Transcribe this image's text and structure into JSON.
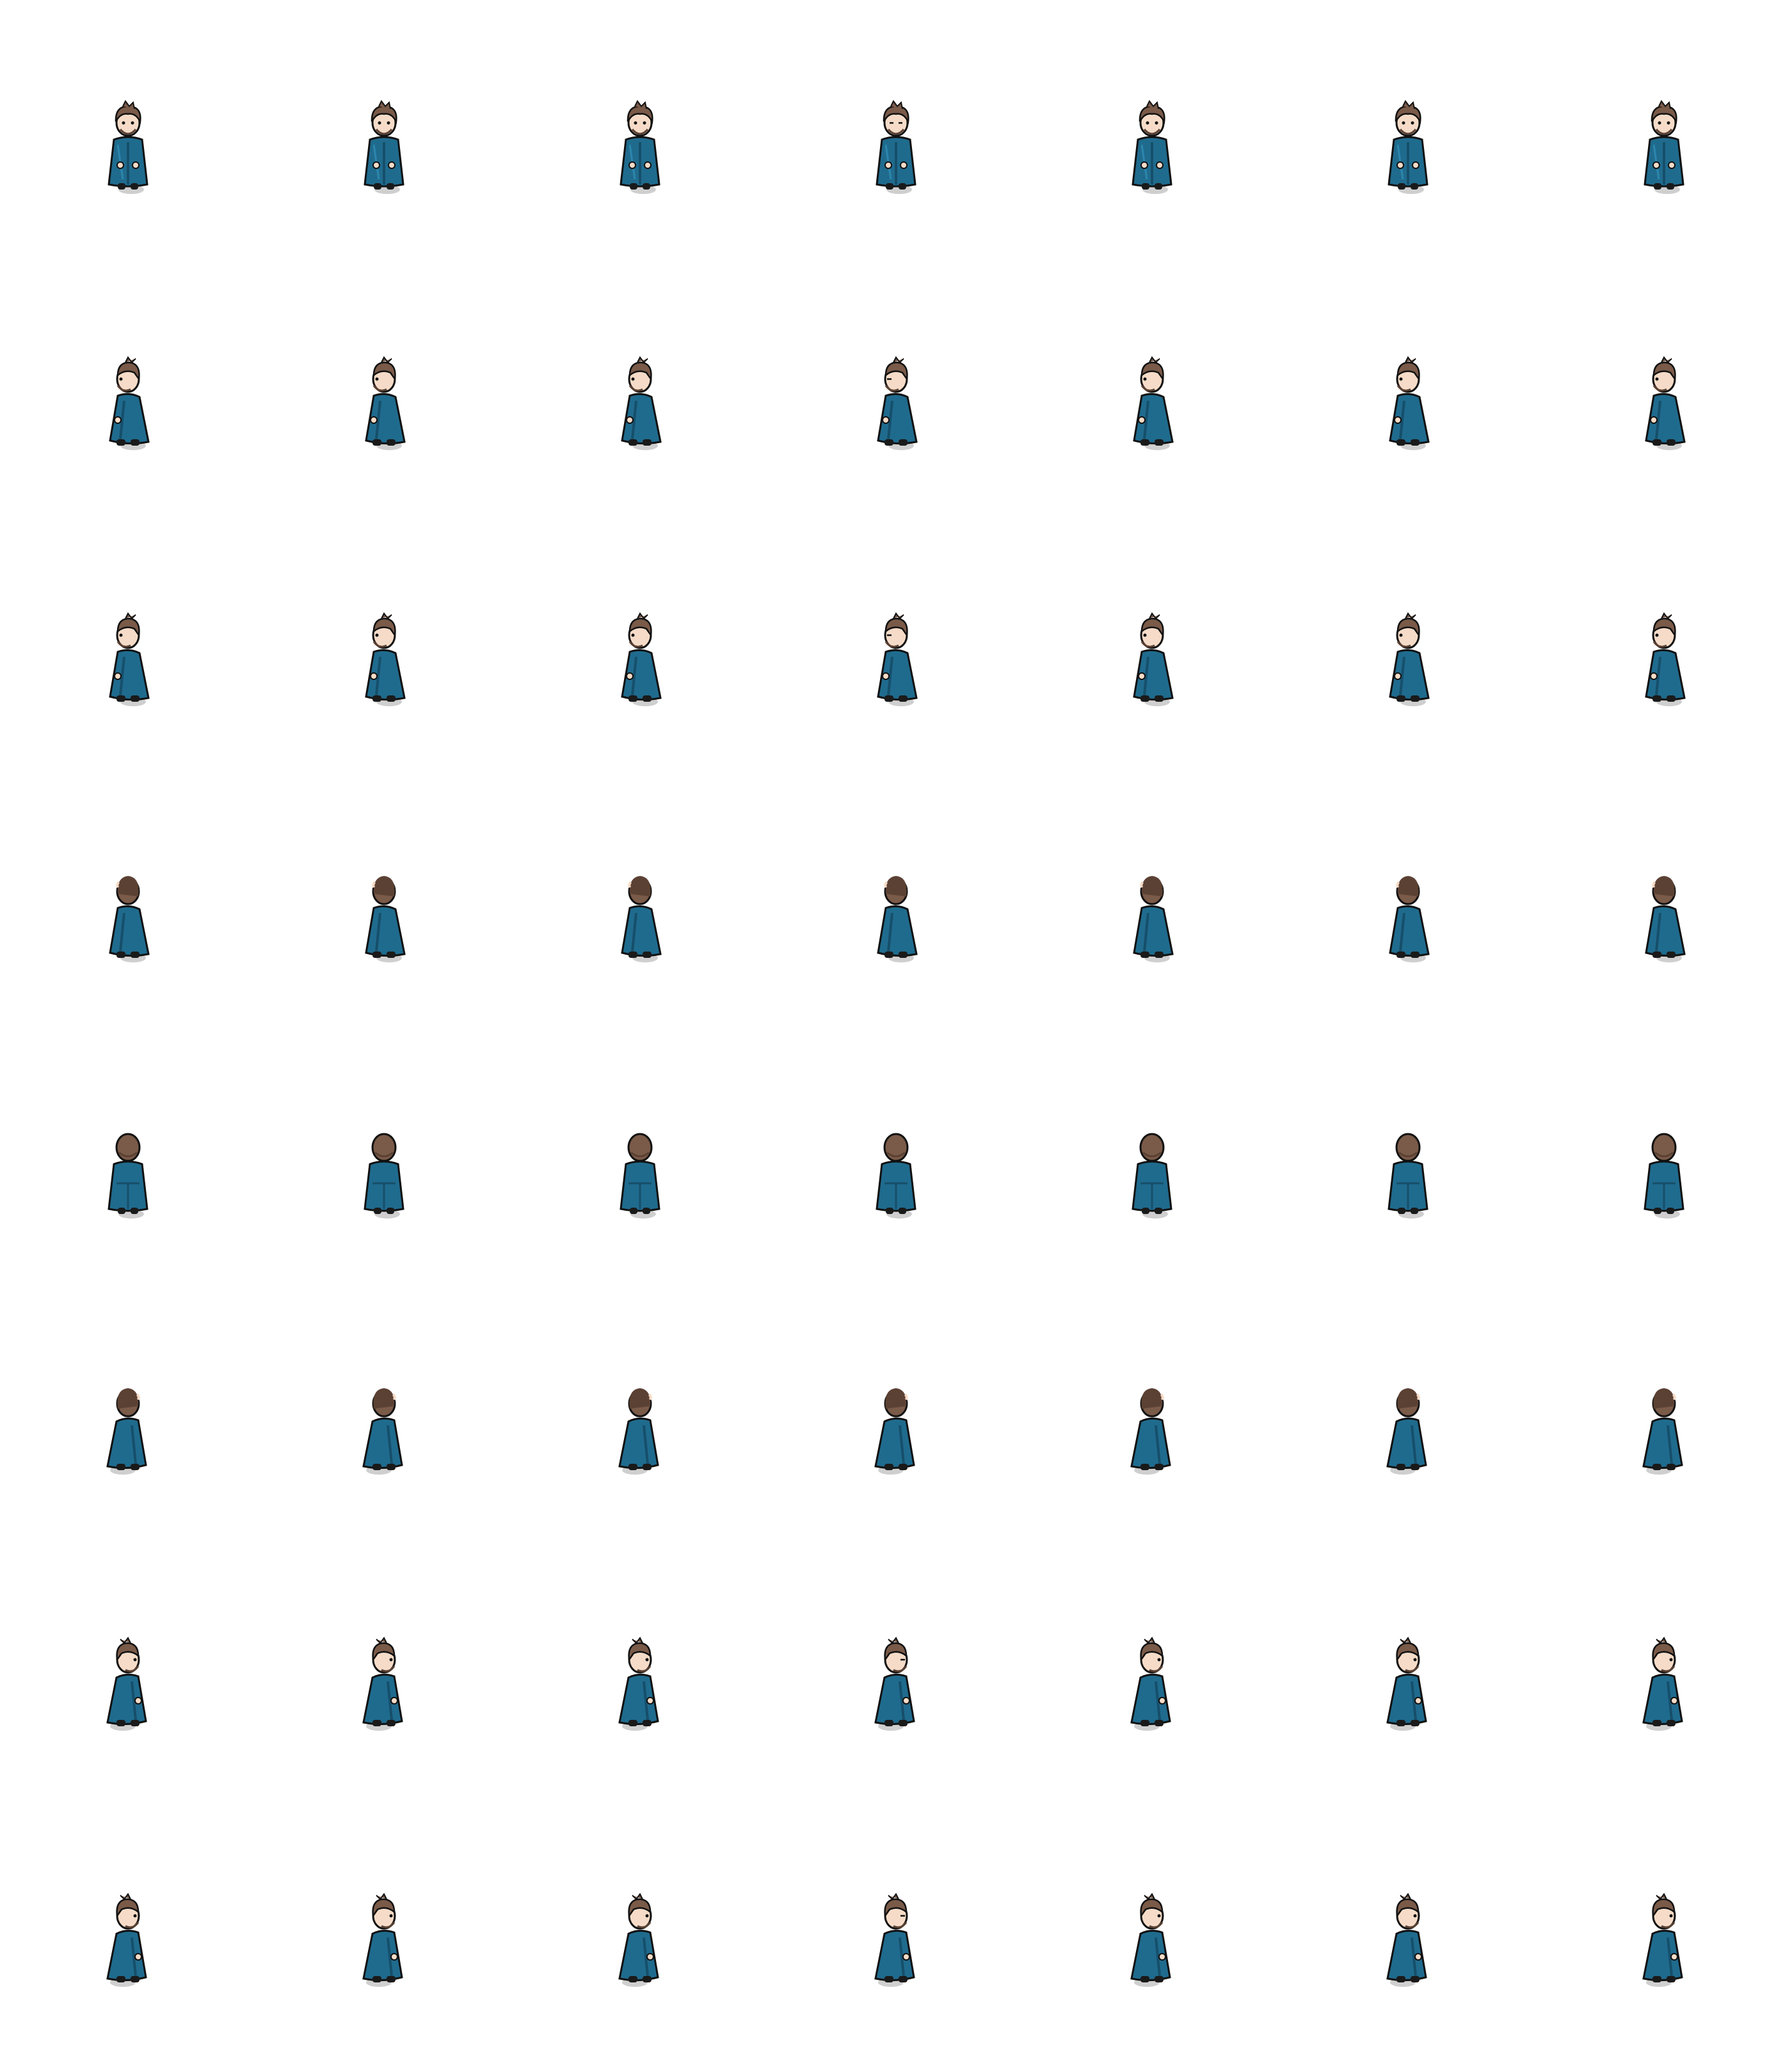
{
  "sheet": {
    "columns": 7,
    "rows": 8,
    "background": "#ffffff",
    "character": {
      "coat_color": "#1f6b8e",
      "coat_shade": "#164f6a",
      "coat_highlight": "#2d86ad",
      "hair_color": "#7a5a48",
      "hair_shade": "#5b4133",
      "skin_color": "#f6dcc8",
      "outline_color": "#111111",
      "boot_color": "#1a1a1a",
      "shadow_color": "#cfcfcf"
    },
    "rows_facing": [
      "front",
      "front-left",
      "left",
      "back-left",
      "back",
      "back-right",
      "right",
      "front-right"
    ],
    "blink_frame_index": 3
  }
}
